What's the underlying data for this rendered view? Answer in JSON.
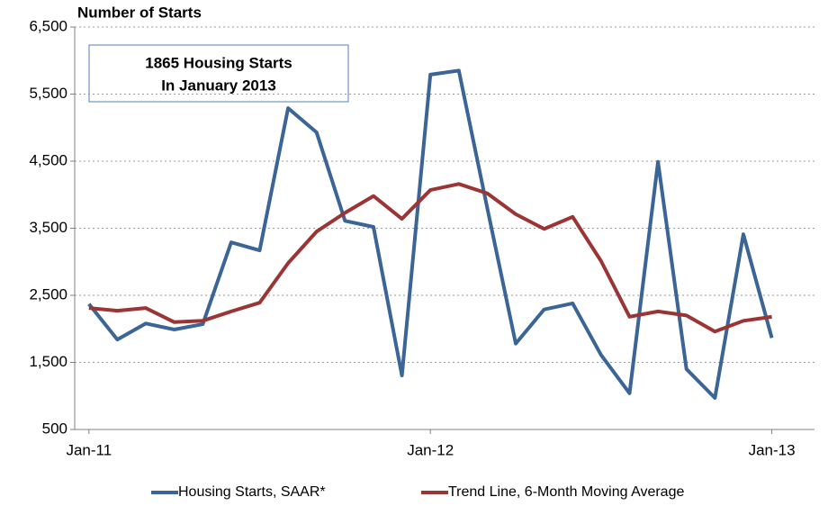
{
  "chart_data": {
    "type": "line",
    "y_axis_label": "Number of Starts",
    "annotation": [
      "1865 Housing Starts",
      "In  January 2013"
    ],
    "categories": [
      "Jan-11",
      null,
      null,
      null,
      null,
      null,
      null,
      null,
      null,
      null,
      null,
      null,
      "Jan-12",
      null,
      null,
      null,
      null,
      null,
      null,
      null,
      null,
      null,
      null,
      null,
      "Jan-13"
    ],
    "series": [
      {
        "name": "Housing Starts, SAAR*",
        "color": "#3a6596",
        "values": [
          2370,
          1840,
          2080,
          1990,
          2070,
          3290,
          3170,
          5290,
          4930,
          3610,
          3520,
          1305,
          5790,
          5850,
          3800,
          1780,
          2290,
          2380,
          1610,
          1040,
          4490,
          1400,
          970,
          3410,
          1865
        ]
      },
      {
        "name": "Trend Line, 6-Month Moving Average",
        "color": "#9b3434",
        "values": [
          2310,
          2270,
          2310,
          2100,
          2120,
          2260,
          2390,
          2980,
          3450,
          3730,
          3980,
          3640,
          4070,
          4160,
          4020,
          3710,
          3490,
          3670,
          3010,
          2180,
          2260,
          2200,
          1960,
          2120,
          2180
        ]
      }
    ],
    "ylim": [
      500,
      6500
    ],
    "yticks": [
      {
        "value": 500,
        "label": "500"
      },
      {
        "value": 1500,
        "label": "1,500"
      },
      {
        "value": 2500,
        "label": "2,500"
      },
      {
        "value": 3500,
        "label": "3,500"
      },
      {
        "value": 4500,
        "label": "4,500"
      },
      {
        "value": 5500,
        "label": "5,500"
      },
      {
        "value": 6500,
        "label": "6,500"
      }
    ],
    "grid": true,
    "legend": "bottom"
  }
}
